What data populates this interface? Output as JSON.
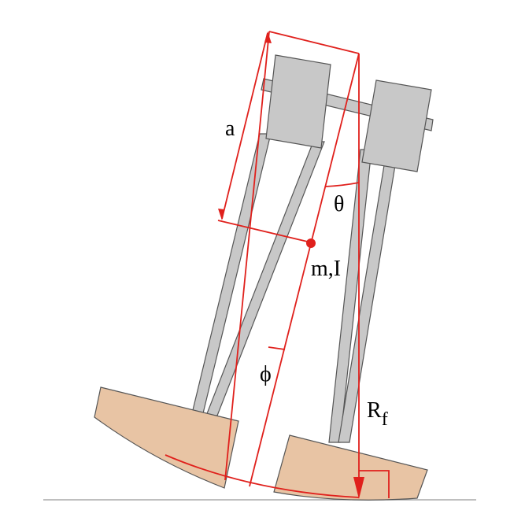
{
  "labels": {
    "a": "a",
    "theta": "θ",
    "mass": "m,I",
    "phi": "ϕ",
    "radius_main": "R",
    "radius_sub": "f"
  },
  "colors": {
    "frame_fill": "#c8c8c8",
    "frame_stroke": "#555555",
    "foot_fill": "#e8c4a4",
    "foot_stroke": "#555555",
    "annotation": "#e0201c",
    "ground": "#999999"
  }
}
